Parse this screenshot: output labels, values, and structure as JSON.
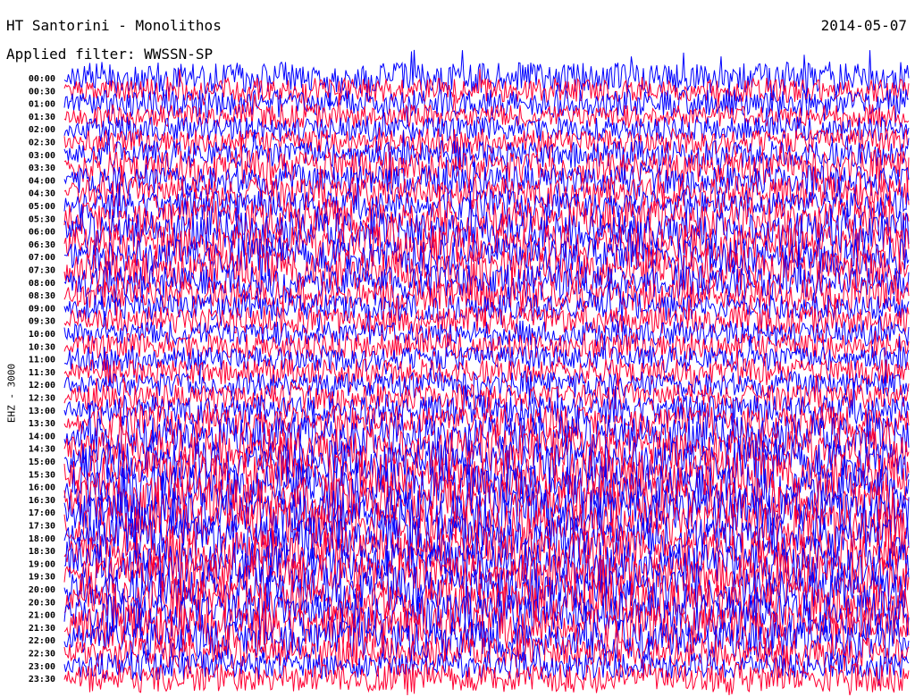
{
  "header": {
    "station": "HT Santorini - Monolithos",
    "date": "2014-05-07",
    "filter": "Applied filter: WWSSN-SP"
  },
  "chart_data": {
    "type": "line",
    "title": "HT Santorini - Monolithos",
    "ylabel": "EHZ - 3000",
    "row_labels": [
      "00:00",
      "00:30",
      "01:00",
      "01:30",
      "02:00",
      "02:30",
      "03:00",
      "03:30",
      "04:00",
      "04:30",
      "05:00",
      "05:30",
      "06:00",
      "06:30",
      "07:00",
      "07:30",
      "08:00",
      "08:30",
      "09:00",
      "09:30",
      "10:00",
      "10:30",
      "11:00",
      "11:30",
      "12:00",
      "12:30",
      "13:00",
      "13:30",
      "14:00",
      "14:30",
      "15:00",
      "15:30",
      "16:00",
      "16:30",
      "17:00",
      "17:30",
      "18:00",
      "18:30",
      "19:00",
      "19:30",
      "20:00",
      "20:30",
      "21:00",
      "21:30",
      "22:00",
      "22:30",
      "23:00",
      "23:30"
    ],
    "trace_colors": [
      "#0000ff",
      "#ff0033"
    ],
    "row_activity": [
      0.55,
      0.35,
      0.45,
      0.35,
      0.4,
      0.4,
      0.45,
      0.6,
      0.55,
      0.55,
      0.5,
      0.7,
      0.75,
      0.8,
      0.7,
      0.75,
      0.6,
      0.55,
      0.45,
      0.45,
      0.4,
      0.45,
      0.4,
      0.4,
      0.4,
      0.45,
      0.5,
      0.6,
      0.75,
      0.8,
      0.85,
      0.9,
      0.9,
      0.9,
      0.9,
      0.9,
      0.9,
      0.85,
      0.85,
      0.85,
      0.85,
      0.9,
      0.9,
      0.85,
      0.75,
      0.55,
      0.45,
      0.5
    ],
    "grid": false
  }
}
